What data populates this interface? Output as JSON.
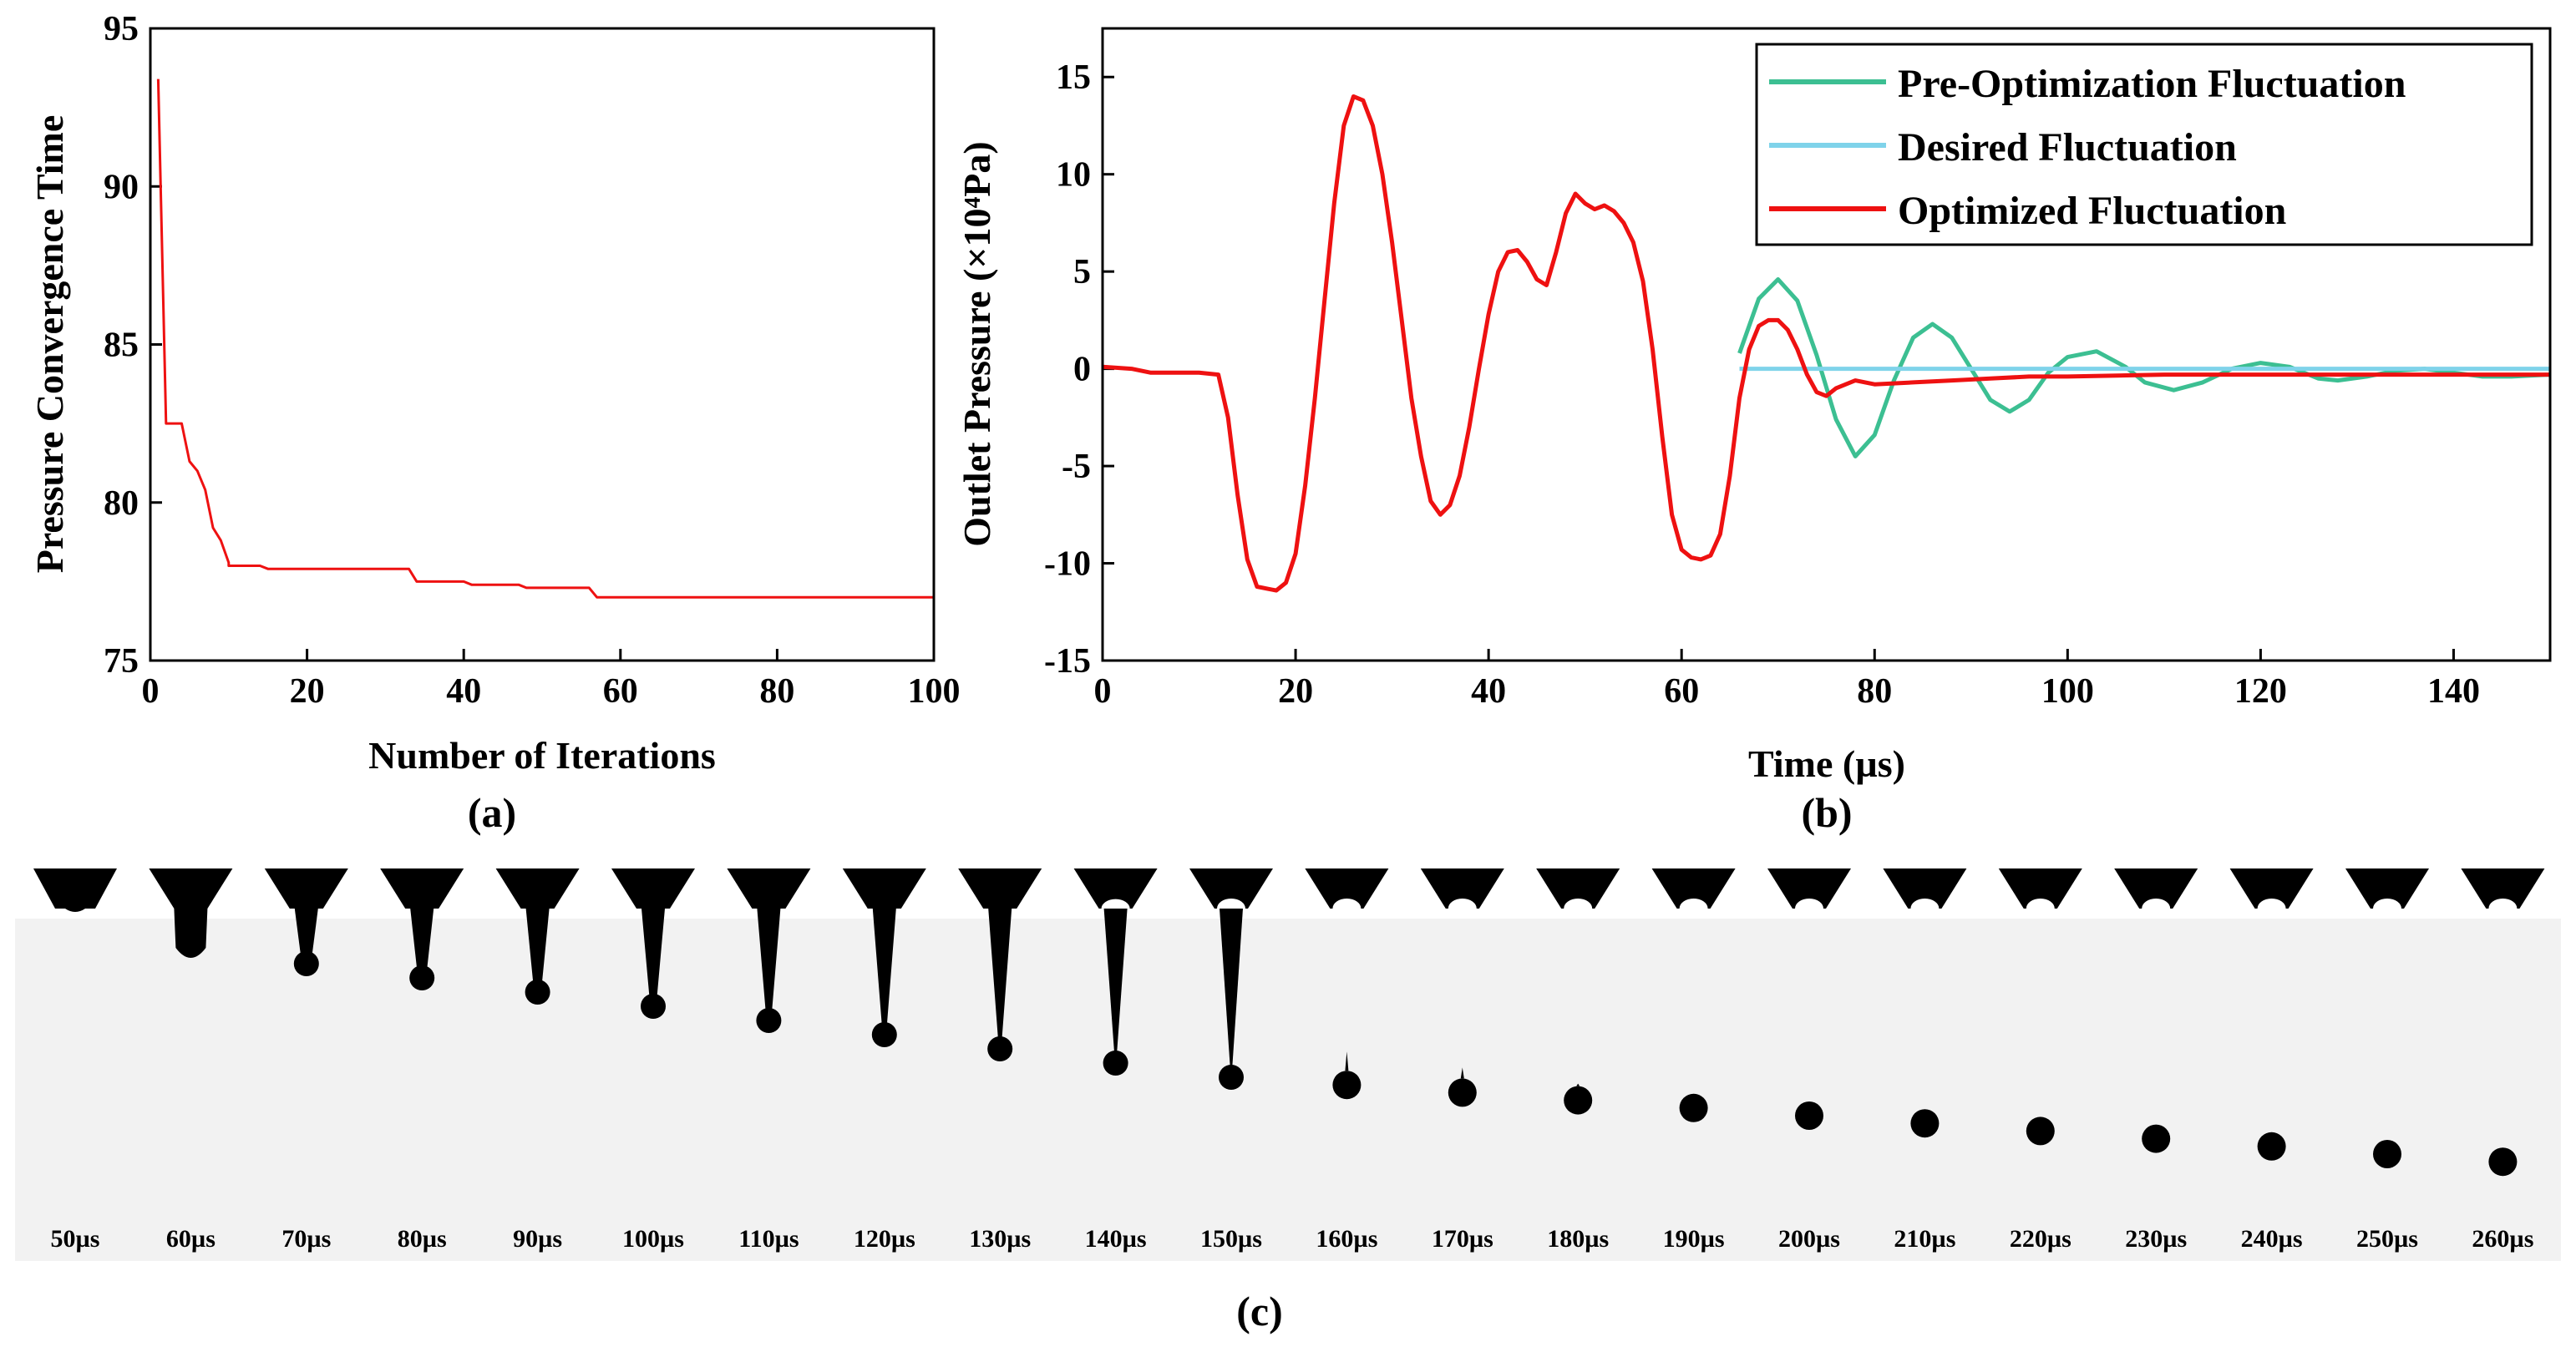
{
  "colors": {
    "pre": "#3cbf92",
    "desired": "#7fd3ea",
    "optimized": "#ee1111",
    "panel_a_line": "#ee1111",
    "strip_bg": "#f2f2f2"
  },
  "chart_data": [
    {
      "id": "a",
      "type": "line",
      "panel_label": "(a)",
      "xlabel": "Number of Iterations",
      "ylabel": "Pressure Convergence Time",
      "xlim": [
        0,
        100
      ],
      "ylim": [
        75,
        95
      ],
      "xticks": [
        0,
        20,
        40,
        60,
        80,
        100
      ],
      "yticks": [
        75,
        80,
        85,
        90,
        95
      ],
      "series": [
        {
          "name": "Pressure Convergence Time",
          "x": [
            1,
            2,
            2,
            4,
            5,
            6,
            7,
            8,
            9,
            10,
            10,
            14,
            15,
            15,
            33,
            34,
            34,
            40,
            41,
            47,
            48,
            56,
            57,
            100
          ],
          "y": [
            93.4,
            82.5,
            82.5,
            82.5,
            81.3,
            81.0,
            80.4,
            79.2,
            78.8,
            78.1,
            78.0,
            78.0,
            77.9,
            77.9,
            77.9,
            77.5,
            77.5,
            77.5,
            77.4,
            77.4,
            77.3,
            77.3,
            77.0,
            77.0
          ]
        }
      ]
    },
    {
      "id": "b",
      "type": "line",
      "panel_label": "(b)",
      "xlabel": "Time (µs)",
      "ylabel": "Outlet Pressure (×10⁴Pa)",
      "xlim": [
        0,
        150
      ],
      "ylim": [
        -15,
        17.5
      ],
      "xticks": [
        0,
        20,
        40,
        60,
        80,
        100,
        120,
        140
      ],
      "yticks": [
        -15,
        -10,
        -5,
        0,
        5,
        10,
        15
      ],
      "legend": [
        "Pre-Optimization Fluctuation",
        "Desired Fluctuation",
        "Optimized Fluctuation"
      ],
      "legend_position": "top-right",
      "series": [
        {
          "name": "Pre-Optimization Fluctuation",
          "x": [
            66,
            68,
            70,
            72,
            74,
            76,
            78,
            80,
            82,
            84,
            86,
            88,
            90,
            92,
            94,
            96,
            98,
            100,
            103,
            106,
            108,
            111,
            114,
            117,
            120,
            123,
            126,
            128,
            131,
            134,
            137,
            140,
            143,
            146,
            150
          ],
          "y": [
            0.8,
            3.6,
            4.6,
            3.5,
            0.7,
            -2.6,
            -4.5,
            -3.4,
            -0.6,
            1.6,
            2.3,
            1.6,
            0.0,
            -1.6,
            -2.2,
            -1.6,
            -0.2,
            0.6,
            0.9,
            0.1,
            -0.7,
            -1.1,
            -0.7,
            0.0,
            0.3,
            0.1,
            -0.5,
            -0.6,
            -0.4,
            -0.1,
            0.0,
            -0.2,
            -0.4,
            -0.4,
            -0.3
          ]
        },
        {
          "name": "Desired Fluctuation",
          "x": [
            66,
            150
          ],
          "y": [
            0,
            0
          ]
        },
        {
          "name": "Optimized Fluctuation",
          "x": [
            0,
            3,
            5,
            10,
            12,
            13,
            14,
            15,
            16,
            17,
            18,
            19,
            20,
            21,
            22,
            23,
            24,
            25,
            26,
            27,
            28,
            29,
            30,
            31,
            32,
            33,
            34,
            35,
            36,
            37,
            38,
            39,
            40,
            41,
            42,
            43,
            44,
            45,
            46,
            47,
            48,
            49,
            50,
            51,
            52,
            53,
            54,
            55,
            56,
            57,
            58,
            59,
            60,
            61,
            62,
            63,
            64,
            65,
            66,
            67,
            68,
            69,
            70,
            71,
            72,
            73,
            74,
            75,
            76,
            78,
            80,
            84,
            88,
            92,
            96,
            100,
            110,
            120,
            130,
            140,
            150
          ],
          "y": [
            0.1,
            0.0,
            -0.2,
            -0.2,
            -0.3,
            -2.5,
            -6.5,
            -9.8,
            -11.2,
            -11.3,
            -11.4,
            -11.0,
            -9.5,
            -6.0,
            -1.5,
            3.5,
            8.5,
            12.5,
            14.0,
            13.8,
            12.5,
            10.0,
            6.5,
            2.5,
            -1.5,
            -4.5,
            -6.8,
            -7.5,
            -7.0,
            -5.5,
            -3.0,
            0.0,
            2.8,
            5.0,
            6.0,
            6.1,
            5.5,
            4.6,
            4.3,
            6.0,
            8.0,
            9.0,
            8.5,
            8.2,
            8.4,
            8.1,
            7.5,
            6.5,
            4.5,
            1.0,
            -3.5,
            -7.5,
            -9.3,
            -9.7,
            -9.8,
            -9.6,
            -8.5,
            -5.5,
            -1.5,
            1.0,
            2.2,
            2.5,
            2.5,
            2.0,
            1.0,
            -0.3,
            -1.2,
            -1.4,
            -1.0,
            -0.6,
            -0.8,
            -0.7,
            -0.6,
            -0.5,
            -0.4,
            -0.4,
            -0.3,
            -0.3,
            -0.3,
            -0.3,
            -0.3
          ]
        }
      ]
    }
  ],
  "panel_c": {
    "label": "(c)",
    "frames": [
      "50µs",
      "60µs",
      "70µs",
      "80µs",
      "90µs",
      "100µs",
      "110µs",
      "120µs",
      "130µs",
      "140µs",
      "150µs",
      "160µs",
      "170µs",
      "180µs",
      "190µs",
      "200µs",
      "210µs",
      "220µs",
      "230µs",
      "240µs",
      "250µs",
      "260µs"
    ]
  }
}
